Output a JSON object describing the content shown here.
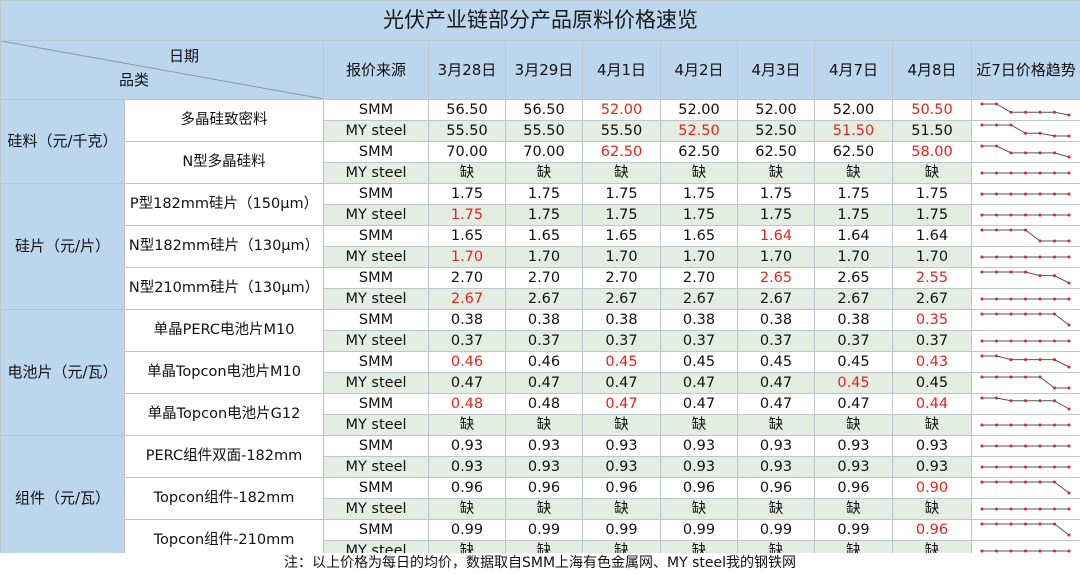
{
  "title": "光伏产业链部分产品原料价格速览",
  "header": {
    "date_label": "日期",
    "category_label": "品类",
    "source_label": "报价来源",
    "dates": [
      "3月28日",
      "3月29日",
      "4月1日",
      "4月2日",
      "4月3日",
      "4月7日",
      "4月8日"
    ],
    "trend_label": "近7日价格趋势"
  },
  "categories": [
    {
      "label": "硅料（元/千克）",
      "products": [
        {
          "label": "多晶硅致密料",
          "rows": [
            {
              "source": "SMM",
              "values": [
                "56.50",
                "56.50",
                "52.00",
                "52.00",
                "52.00",
                "52.00",
                "50.50"
              ],
              "red": [
                false,
                false,
                true,
                false,
                false,
                false,
                true
              ],
              "trend": [
                56.5,
                56.5,
                52,
                52,
                52,
                52,
                50.5
              ]
            },
            {
              "source": "MY steel",
              "values": [
                "55.50",
                "55.50",
                "55.50",
                "52.50",
                "52.50",
                "51.50",
                "51.50"
              ],
              "red": [
                false,
                false,
                false,
                true,
                false,
                true,
                false
              ],
              "trend": [
                55.5,
                55.5,
                55.5,
                52.5,
                52.5,
                51.5,
                51.5
              ]
            }
          ]
        },
        {
          "label": "N型多晶硅料",
          "rows": [
            {
              "source": "SMM",
              "values": [
                "70.00",
                "70.00",
                "62.50",
                "62.50",
                "62.50",
                "62.50",
                "58.00"
              ],
              "red": [
                false,
                false,
                true,
                false,
                false,
                false,
                true
              ],
              "trend": [
                70,
                70,
                62.5,
                62.5,
                62.5,
                62.5,
                58
              ]
            },
            {
              "source": "MY steel",
              "values": [
                "缺",
                "缺",
                "缺",
                "缺",
                "缺",
                "缺",
                "缺"
              ],
              "red": [
                false,
                false,
                false,
                false,
                false,
                false,
                false
              ],
              "trend": [
                1,
                1,
                1,
                1,
                1,
                1,
                1
              ]
            }
          ]
        }
      ]
    },
    {
      "label": "硅片（元/片）",
      "products": [
        {
          "label": "P型182mm硅片（150μm）",
          "rows": [
            {
              "source": "SMM",
              "values": [
                "1.75",
                "1.75",
                "1.75",
                "1.75",
                "1.75",
                "1.75",
                "1.75"
              ],
              "red": [
                false,
                false,
                false,
                false,
                false,
                false,
                false
              ],
              "trend": [
                1.75,
                1.75,
                1.75,
                1.75,
                1.75,
                1.75,
                1.75
              ]
            },
            {
              "source": "MY steel",
              "values": [
                "1.75",
                "1.75",
                "1.75",
                "1.75",
                "1.75",
                "1.75",
                "1.75"
              ],
              "red": [
                true,
                false,
                false,
                false,
                false,
                false,
                false
              ],
              "trend": [
                1.75,
                1.75,
                1.75,
                1.75,
                1.75,
                1.75,
                1.75
              ]
            }
          ]
        },
        {
          "label": "N型182mm硅片（130μm）",
          "rows": [
            {
              "source": "SMM",
              "values": [
                "1.65",
                "1.65",
                "1.65",
                "1.65",
                "1.64",
                "1.64",
                "1.64"
              ],
              "red": [
                false,
                false,
                false,
                false,
                true,
                false,
                false
              ],
              "trend": [
                1.65,
                1.65,
                1.65,
                1.65,
                1.64,
                1.64,
                1.64
              ]
            },
            {
              "source": "MY steel",
              "values": [
                "1.70",
                "1.70",
                "1.70",
                "1.70",
                "1.70",
                "1.70",
                "1.70"
              ],
              "red": [
                true,
                false,
                false,
                false,
                false,
                false,
                false
              ],
              "trend": [
                1.7,
                1.7,
                1.7,
                1.7,
                1.7,
                1.7,
                1.7
              ]
            }
          ]
        },
        {
          "label": "N型210mm硅片（130μm）",
          "rows": [
            {
              "source": "SMM",
              "values": [
                "2.70",
                "2.70",
                "2.70",
                "2.70",
                "2.65",
                "2.65",
                "2.55"
              ],
              "red": [
                false,
                false,
                false,
                false,
                true,
                false,
                true
              ],
              "trend": [
                2.7,
                2.7,
                2.7,
                2.7,
                2.65,
                2.65,
                2.55
              ]
            },
            {
              "source": "MY steel",
              "values": [
                "2.67",
                "2.67",
                "2.67",
                "2.67",
                "2.67",
                "2.67",
                "2.67"
              ],
              "red": [
                true,
                false,
                false,
                false,
                false,
                false,
                false
              ],
              "trend": [
                2.67,
                2.67,
                2.67,
                2.67,
                2.67,
                2.67,
                2.67
              ]
            }
          ]
        }
      ]
    },
    {
      "label": "电池片（元/瓦）",
      "products": [
        {
          "label": "单晶PERC电池片M10",
          "rows": [
            {
              "source": "SMM",
              "values": [
                "0.38",
                "0.38",
                "0.38",
                "0.38",
                "0.38",
                "0.38",
                "0.35"
              ],
              "red": [
                false,
                false,
                false,
                false,
                false,
                false,
                true
              ],
              "trend": [
                0.38,
                0.38,
                0.38,
                0.38,
                0.38,
                0.38,
                0.35
              ]
            },
            {
              "source": "MY steel",
              "values": [
                "0.37",
                "0.37",
                "0.37",
                "0.37",
                "0.37",
                "0.37",
                "0.37"
              ],
              "red": [
                false,
                false,
                false,
                false,
                false,
                false,
                false
              ],
              "trend": [
                0.37,
                0.37,
                0.37,
                0.37,
                0.37,
                0.37,
                0.37
              ]
            }
          ]
        },
        {
          "label": "单晶Topcon电池片M10",
          "rows": [
            {
              "source": "SMM",
              "values": [
                "0.46",
                "0.46",
                "0.45",
                "0.45",
                "0.45",
                "0.45",
                "0.43"
              ],
              "red": [
                true,
                false,
                true,
                false,
                false,
                false,
                true
              ],
              "trend": [
                0.46,
                0.46,
                0.45,
                0.45,
                0.45,
                0.45,
                0.43
              ]
            },
            {
              "source": "MY steel",
              "values": [
                "0.47",
                "0.47",
                "0.47",
                "0.47",
                "0.47",
                "0.45",
                "0.45"
              ],
              "red": [
                false,
                false,
                false,
                false,
                false,
                true,
                false
              ],
              "trend": [
                0.47,
                0.47,
                0.47,
                0.47,
                0.47,
                0.45,
                0.45
              ]
            }
          ]
        },
        {
          "label": "单晶Topcon电池片G12",
          "rows": [
            {
              "source": "SMM",
              "values": [
                "0.48",
                "0.48",
                "0.47",
                "0.47",
                "0.47",
                "0.47",
                "0.44"
              ],
              "red": [
                true,
                false,
                true,
                false,
                false,
                false,
                true
              ],
              "trend": [
                0.48,
                0.48,
                0.47,
                0.47,
                0.47,
                0.47,
                0.44
              ]
            },
            {
              "source": "MY steel",
              "values": [
                "缺",
                "缺",
                "缺",
                "缺",
                "缺",
                "缺",
                "缺"
              ],
              "red": [
                false,
                false,
                false,
                false,
                false,
                false,
                false
              ],
              "trend": [
                1,
                1,
                1,
                1,
                1,
                1,
                1
              ]
            }
          ]
        }
      ]
    },
    {
      "label": "组件（元/瓦）",
      "products": [
        {
          "label": "PERC组件双面-182mm",
          "rows": [
            {
              "source": "SMM",
              "values": [
                "0.93",
                "0.93",
                "0.93",
                "0.93",
                "0.93",
                "0.93",
                "0.93"
              ],
              "red": [
                false,
                false,
                false,
                false,
                false,
                false,
                false
              ],
              "trend": [
                0.93,
                0.93,
                0.93,
                0.93,
                0.93,
                0.93,
                0.93
              ]
            },
            {
              "source": "MY steel",
              "values": [
                "0.93",
                "0.93",
                "0.93",
                "0.93",
                "0.93",
                "0.93",
                "0.93"
              ],
              "red": [
                false,
                false,
                false,
                false,
                false,
                false,
                false
              ],
              "trend": [
                0.93,
                0.93,
                0.93,
                0.93,
                0.93,
                0.93,
                0.93
              ]
            }
          ]
        },
        {
          "label": "Topcon组件-182mm",
          "rows": [
            {
              "source": "SMM",
              "values": [
                "0.96",
                "0.96",
                "0.96",
                "0.96",
                "0.96",
                "0.96",
                "0.90"
              ],
              "red": [
                false,
                false,
                false,
                false,
                false,
                false,
                true
              ],
              "trend": [
                0.96,
                0.96,
                0.96,
                0.96,
                0.96,
                0.96,
                0.9
              ]
            },
            {
              "source": "MY steel",
              "values": [
                "缺",
                "缺",
                "缺",
                "缺",
                "缺",
                "缺",
                "缺"
              ],
              "red": [
                false,
                false,
                false,
                false,
                false,
                false,
                false
              ],
              "trend": [
                1,
                1,
                1,
                1,
                1,
                1,
                1
              ]
            }
          ]
        },
        {
          "label": "Topcon组件-210mm",
          "rows": [
            {
              "source": "SMM",
              "values": [
                "0.99",
                "0.99",
                "0.99",
                "0.99",
                "0.99",
                "0.99",
                "0.96"
              ],
              "red": [
                false,
                false,
                false,
                false,
                false,
                false,
                true
              ],
              "trend": [
                0.99,
                0.99,
                0.99,
                0.99,
                0.99,
                0.99,
                0.96
              ]
            },
            {
              "source": "MY steel",
              "values": [
                "缺",
                "缺",
                "缺",
                "缺",
                "缺",
                "缺",
                "缺"
              ],
              "red": [
                false,
                false,
                false,
                false,
                false,
                false,
                false
              ],
              "trend": [
                1,
                1,
                1,
                1,
                1,
                1,
                1
              ]
            }
          ]
        }
      ]
    }
  ],
  "footnote": "注：以上价格为每日的均价，数据取自SMM上海有色金属网、MY steel我的钢铁网",
  "colors": {
    "header_bg": "#bcd6ee",
    "alt_row_bg": "#e4ede2",
    "grid_line": "#bcc6cf",
    "red_text": "#e8231c",
    "trend_line": "#555555",
    "trend_marker": "#d8242a"
  }
}
